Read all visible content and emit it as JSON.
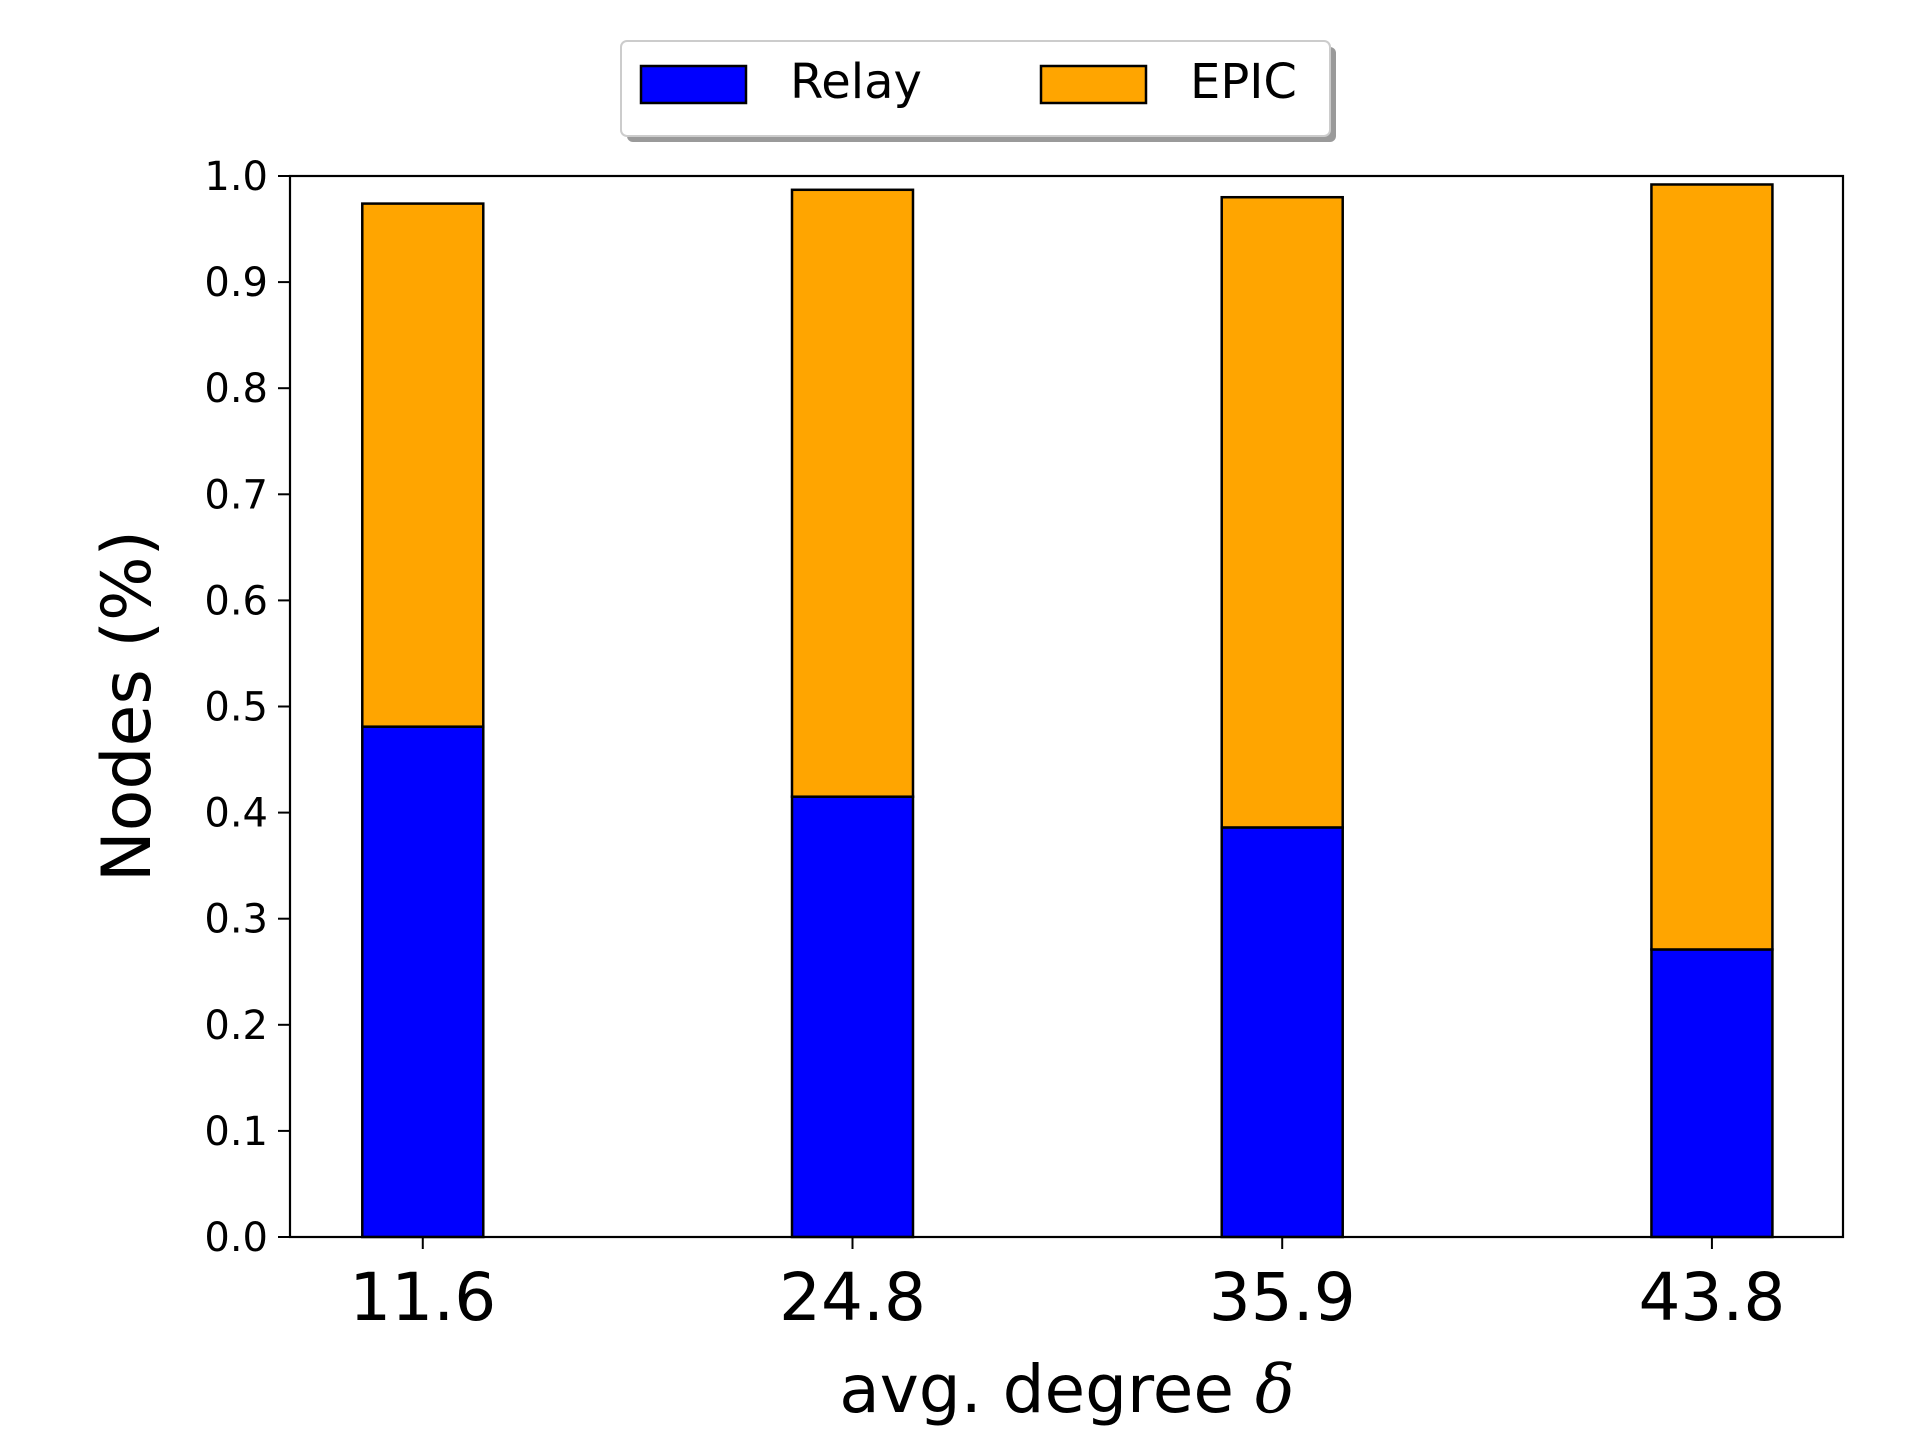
{
  "chart_data": {
    "type": "bar",
    "stacked": true,
    "title": "",
    "xlabel_prefix": "avg. degree ",
    "xlabel_symbol": "δ",
    "ylabel": "Nodes (%)",
    "categories": [
      "11.6",
      "24.8",
      "35.9",
      "43.8"
    ],
    "series": [
      {
        "name": "Relay",
        "color": "#0000ff",
        "values": [
          0.481,
          0.415,
          0.386,
          0.271
        ]
      },
      {
        "name": "EPIC",
        "color": "#ffa500",
        "values": [
          0.493,
          0.572,
          0.594,
          0.721
        ]
      }
    ],
    "ylim": [
      0,
      1.0
    ],
    "yticks": [
      "0.0",
      "0.1",
      "0.2",
      "0.3",
      "0.4",
      "0.5",
      "0.6",
      "0.7",
      "0.8",
      "0.9",
      "1.0"
    ],
    "grid": false,
    "legend_position": "top-center, outside plot"
  }
}
